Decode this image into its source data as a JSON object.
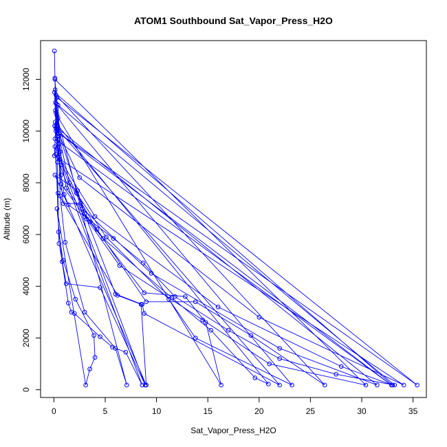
{
  "chart_data": {
    "type": "line",
    "title": "ATOM1 Southbound Sat_Vapor_Press_H2O",
    "xlabel": "Sat_Vapor_Press_H2O",
    "ylabel": "Altitude (m)",
    "xlim": [
      -1.3,
      36.3
    ],
    "ylim": [
      -300,
      13500
    ],
    "x_ticks": [
      0,
      5,
      10,
      15,
      20,
      25,
      30,
      35
    ],
    "y_ticks": [
      0,
      2000,
      4000,
      6000,
      8000,
      10000,
      12000
    ],
    "color": "#0000ff",
    "marker": "open-circle",
    "legend": "none",
    "grid": false,
    "series": [
      {
        "points": [
          [
            0.05,
            13100
          ],
          [
            0.1,
            12050
          ],
          [
            0.12,
            11600
          ],
          [
            0.15,
            11100
          ],
          [
            0.2,
            10700
          ],
          [
            0.25,
            10200
          ],
          [
            0.3,
            9800
          ],
          [
            0.4,
            9400
          ],
          [
            0.5,
            9000
          ],
          [
            0.7,
            8300
          ],
          [
            1.0,
            7550
          ],
          [
            1.4,
            7150
          ],
          [
            3.0,
            6700
          ],
          [
            5.8,
            5850
          ],
          [
            8.7,
            4900
          ],
          [
            11.8,
            3600
          ],
          [
            17.0,
            2300
          ],
          [
            22.0,
            1200
          ],
          [
            27.5,
            600
          ],
          [
            33.2,
            180
          ],
          [
            0.4,
            11000
          ],
          [
            0.6,
            9200
          ],
          [
            1.2,
            7800
          ],
          [
            3.5,
            6500
          ],
          [
            8.8,
            3750
          ],
          [
            12.8,
            3600
          ],
          [
            14.8,
            2600
          ],
          [
            16.3,
            180
          ],
          [
            0.3,
            10600
          ],
          [
            0.5,
            9800
          ],
          [
            1.5,
            8000
          ],
          [
            4.2,
            6200
          ],
          [
            9.0,
            3400
          ],
          [
            13.8,
            3400
          ],
          [
            19.2,
            2100
          ],
          [
            26.4,
            180
          ],
          [
            0.2,
            11400
          ],
          [
            0.4,
            10100
          ],
          [
            0.8,
            8700
          ],
          [
            2.2,
            7600
          ],
          [
            5.1,
            5900
          ],
          [
            11.2,
            3500
          ],
          [
            13.8,
            2000
          ],
          [
            23.2,
            180
          ],
          [
            0.25,
            11050
          ],
          [
            0.3,
            9600
          ],
          [
            0.9,
            7200
          ],
          [
            2.6,
            7200
          ],
          [
            6.0,
            3700
          ],
          [
            8.6,
            3300
          ],
          [
            8.8,
            2950
          ],
          [
            22.0,
            180
          ],
          [
            0.1,
            10200
          ],
          [
            0.5,
            9500
          ],
          [
            0.6,
            7500
          ],
          [
            1.1,
            5700
          ],
          [
            3.0,
            3000
          ],
          [
            6.0,
            1600
          ],
          [
            7.1,
            180
          ],
          [
            0.15,
            10800
          ],
          [
            0.35,
            8800
          ],
          [
            0.45,
            6100
          ],
          [
            0.9,
            5000
          ],
          [
            2.1,
            3500
          ],
          [
            3.9,
            2100
          ],
          [
            4.0,
            1250
          ],
          [
            3.5,
            800
          ],
          [
            3.1,
            180
          ],
          [
            0.3,
            7000
          ],
          [
            0.8,
            4950
          ],
          [
            1.4,
            3350
          ],
          [
            1.7,
            3000
          ],
          [
            2.0,
            2950
          ],
          [
            4.5,
            2050
          ],
          [
            5.7,
            1650
          ],
          [
            7.0,
            1450
          ],
          [
            8.6,
            180
          ],
          [
            0.2,
            9100
          ],
          [
            0.5,
            5650
          ],
          [
            1.2,
            4100
          ],
          [
            4.5,
            3950
          ],
          [
            8.9,
            180
          ],
          [
            0.1,
            9400
          ],
          [
            0.4,
            7600
          ],
          [
            6.2,
            3650
          ],
          [
            8.5,
            3300
          ],
          [
            9.0,
            180
          ],
          [
            0.1,
            8300
          ],
          [
            2.3,
            7700
          ],
          [
            3.0,
            6800
          ],
          [
            4.8,
            5850
          ],
          [
            11.5,
            3550
          ],
          [
            15.3,
            2300
          ],
          [
            19.6,
            460
          ],
          [
            20.9,
            220
          ],
          [
            0.12,
            10350
          ],
          [
            0.7,
            7950
          ],
          [
            3.2,
            6600
          ],
          [
            6.4,
            4800
          ],
          [
            14.5,
            2700
          ],
          [
            21.0,
            1000
          ],
          [
            30.4,
            180
          ],
          [
            0.1,
            12000
          ],
          [
            0.5,
            9900
          ],
          [
            2.8,
            7000
          ],
          [
            9.5,
            4500
          ],
          [
            22.0,
            1600
          ],
          [
            31.5,
            180
          ],
          [
            0.08,
            10200
          ],
          [
            0.6,
            8900
          ],
          [
            4.0,
            6700
          ],
          [
            16.0,
            3200
          ],
          [
            28.0,
            900
          ],
          [
            33.0,
            180
          ],
          [
            0.06,
            11500
          ],
          [
            0.2,
            10100
          ],
          [
            2.5,
            8200
          ],
          [
            20.0,
            2800
          ],
          [
            34.1,
            180
          ],
          [
            0.05,
            9050
          ],
          [
            0.3,
            11300
          ],
          [
            35.4,
            180
          ],
          [
            0.2,
            10000
          ],
          [
            32.9,
            180
          ],
          [
            0.1,
            9700
          ],
          [
            0.4,
            10500
          ]
        ]
      }
    ]
  }
}
